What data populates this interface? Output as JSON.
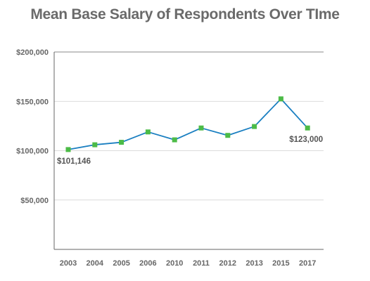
{
  "chart_data": {
    "type": "line",
    "title": "Mean Base Salary of Respondents Over TIme",
    "xlabel": "",
    "ylabel": "",
    "categories": [
      "2003",
      "2004",
      "2005",
      "2006",
      "2010",
      "2011",
      "2012",
      "2013",
      "2015",
      "2017"
    ],
    "series": [
      {
        "values": [
          101146,
          106000,
          108500,
          119000,
          111000,
          123000,
          115500,
          124500,
          152500,
          123000
        ]
      }
    ],
    "ylim": [
      0,
      200000
    ],
    "y_ticks": [
      {
        "value": 50000,
        "label": "$50,000"
      },
      {
        "value": 100000,
        "label": "$100,000"
      },
      {
        "value": 150000,
        "label": "$150,000"
      },
      {
        "value": 200000,
        "label": "$200,000"
      }
    ],
    "annotations": [
      {
        "category": "2003",
        "text": "$101,146"
      },
      {
        "category": "2017",
        "text": "$123,000"
      }
    ],
    "grid": "horizontal",
    "legend": "none",
    "colors": {
      "line": "#1a7fc1",
      "marker": "#4cbb47",
      "grid": "#cfcfcf",
      "top_grid": "#8a8a8a",
      "axis": "#666666"
    }
  }
}
